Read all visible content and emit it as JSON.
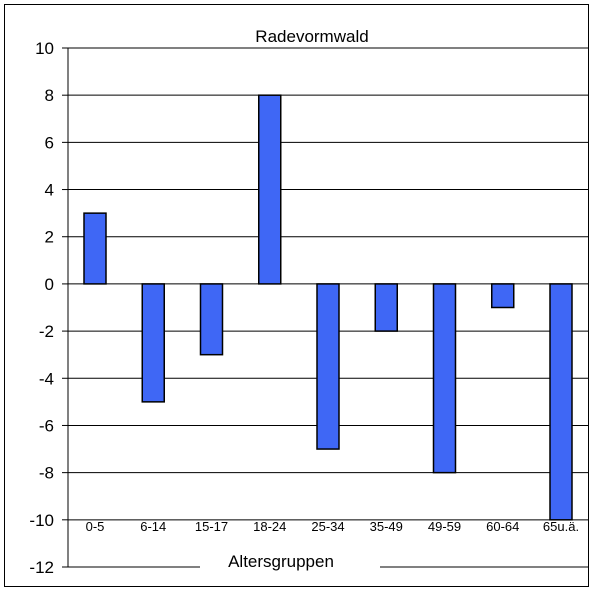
{
  "chart_data": {
    "type": "bar",
    "title": "Radevormwald",
    "xlabel": "Altersgruppen",
    "ylabel": "",
    "categories": [
      "0-5",
      "6-14",
      "15-17",
      "18-24",
      "25-34",
      "35-49",
      "49-59",
      "60-64",
      "65u.ä."
    ],
    "values": [
      3,
      -5,
      -3,
      8,
      -7,
      -2,
      -8,
      -1,
      -10
    ],
    "ylim": [
      -12,
      10
    ],
    "yticks": [
      10,
      8,
      6,
      4,
      2,
      0,
      -2,
      -4,
      -6,
      -8,
      -10,
      -12
    ],
    "grid": true,
    "legend": "none",
    "colors": {
      "bar_fill": "#3f67f5",
      "bar_stroke": "#000000",
      "grid": "#000000"
    }
  }
}
